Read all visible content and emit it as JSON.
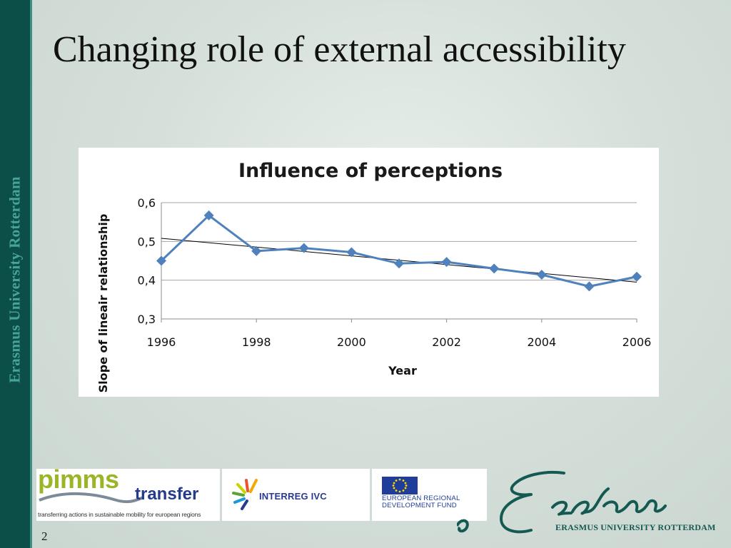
{
  "slide": {
    "title": "Changing role of external accessibility",
    "sidebar_text": "Erasmus University Rotterdam",
    "page_number": "2"
  },
  "colors": {
    "sidebar": "#0b4f48",
    "sidebar_text": "#47a49b",
    "series_line": "#4f81bd",
    "trend_line": "#000000"
  },
  "chart_data": {
    "type": "line",
    "title": "Influence of perceptions",
    "xlabel": "Year",
    "ylabel": "Slope of lineair relationship",
    "x": [
      1996,
      1997,
      1998,
      1999,
      2000,
      2001,
      2002,
      2003,
      2004,
      2005,
      2006
    ],
    "series": [
      {
        "values": [
          0.45,
          0.567,
          0.475,
          0.483,
          0.472,
          0.443,
          0.447,
          0.43,
          0.414,
          0.384,
          0.409
        ]
      }
    ],
    "trendline": {
      "type": "linear",
      "x": [
        1996,
        2006
      ],
      "y": [
        0.508,
        0.395
      ]
    },
    "xticks": [
      1996,
      1998,
      2000,
      2002,
      2004,
      2006
    ],
    "xtick_labels": [
      "1996",
      "1998",
      "2000",
      "2002",
      "2004",
      "2006"
    ],
    "yticks": [
      0.3,
      0.4,
      0.5,
      0.6
    ],
    "ytick_labels": [
      "0,3",
      "0,4",
      "0,5",
      "0,6"
    ],
    "xlim": [
      1996,
      2006
    ],
    "ylim": [
      0.3,
      0.6
    ],
    "grid": "horizontal",
    "legend": "none",
    "marker": "diamond"
  },
  "logos": {
    "pimms": {
      "word": "pimms",
      "transfer": "transfer",
      "tagline": "transferring actions in sustainable mobility for european regions"
    },
    "interreg": {
      "text": "INTERREG IVC"
    },
    "eu": {
      "line1": "EUROPEAN REGIONAL",
      "line2": "DEVELOPMENT FUND"
    },
    "erasmus": {
      "label": "ERASMUS UNIVERSITY ROTTERDAM"
    }
  }
}
